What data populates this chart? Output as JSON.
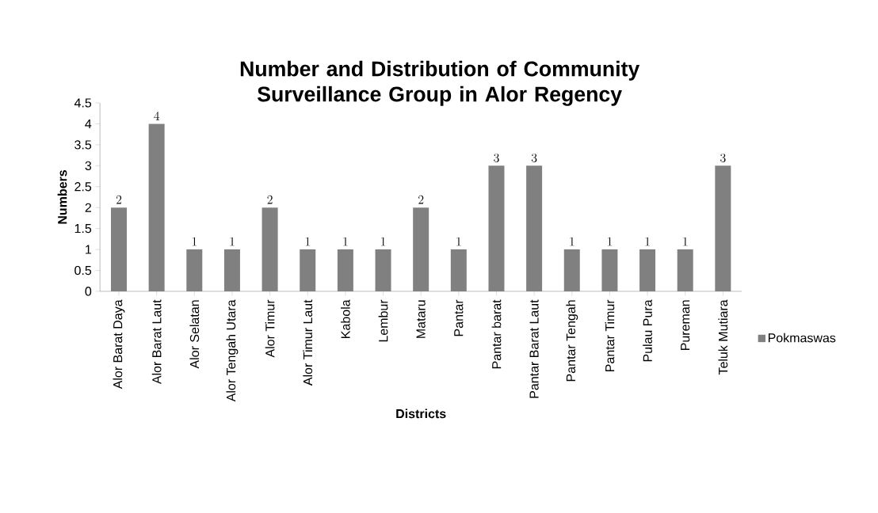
{
  "chart_data": {
    "type": "bar",
    "title": "Number and Distribution of Community Surveillance Group in Alor Regency",
    "xlabel": "Districts",
    "ylabel": "Numbers",
    "categories": [
      "Alor Barat Daya",
      "Alor Barat Laut",
      "Alor Selatan",
      "Alor Tengah Utara",
      "Alor Timur",
      "Alor Timur Laut",
      "Kabola",
      "Lembur",
      "Mataru",
      "Pantar",
      "Pantar barat",
      "Pantar Barat Laut",
      "Pantar Tengah",
      "Pantar Timur",
      "Pulau Pura",
      "Pureman",
      "Teluk Mutiara"
    ],
    "series": [
      {
        "name": "Pokmaswas",
        "color": "#808080",
        "values": [
          2,
          4,
          1,
          1,
          2,
          1,
          1,
          1,
          2,
          1,
          3,
          3,
          1,
          1,
          1,
          1,
          3
        ]
      }
    ],
    "ylim": [
      0,
      4.5
    ],
    "yticks": [
      0,
      0.5,
      1,
      1.5,
      2,
      2.5,
      3,
      3.5,
      4,
      4.5
    ],
    "data_labels": true,
    "grid": false,
    "legend": "right"
  }
}
